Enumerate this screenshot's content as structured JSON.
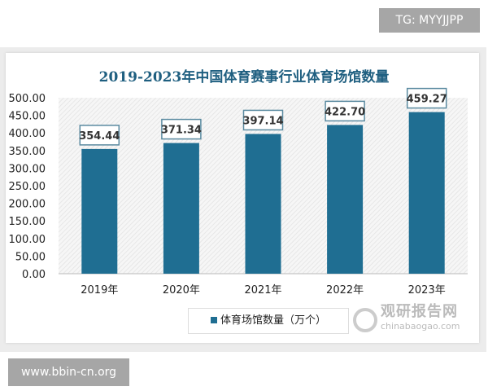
{
  "badges": {
    "top": "TG: MYYJJPP",
    "bottom": "www.bbin-cn.org"
  },
  "watermark": {
    "cn": "观研报告网",
    "en": "chinabaogao.com"
  },
  "chart_data": {
    "type": "bar",
    "title": "2019-2023年中国体育赛事行业体育场馆数量",
    "categories": [
      "2019年",
      "2020年",
      "2021年",
      "2022年",
      "2023年"
    ],
    "series": [
      {
        "name": "体育场馆数量（万个）",
        "values": [
          354.44,
          371.34,
          397.14,
          422.7,
          459.27
        ]
      }
    ],
    "data_labels": [
      "354.44",
      "371.34",
      "397.14",
      "422.70",
      "459.27"
    ],
    "yticks": [
      "0.00",
      "50.00",
      "100.00",
      "150.00",
      "200.00",
      "250.00",
      "300.00",
      "350.00",
      "400.00",
      "450.00",
      "500.00"
    ],
    "ylim": [
      0,
      500
    ],
    "color": "#1f6e92",
    "legend": "bottom",
    "grid": false
  }
}
